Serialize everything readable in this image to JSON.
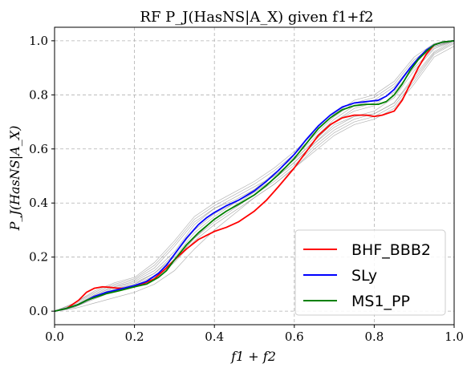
{
  "chart_data": {
    "type": "line",
    "title": "RF P_J(HasNS|A_X) given f1+f2",
    "xlabel": "f1 + f2",
    "ylabel": "P_J(HasNS|A_X)",
    "xlim": [
      0.0,
      1.0
    ],
    "ylim": [
      -0.05,
      1.05
    ],
    "xticks": [
      "0.0",
      "0.2",
      "0.4",
      "0.6",
      "0.8",
      "1.0"
    ],
    "yticks": [
      "0.0",
      "0.2",
      "0.4",
      "0.6",
      "0.8",
      "1.0"
    ],
    "grid": true,
    "legend_position": "bottom-right",
    "series": [
      {
        "name": "BHF_BBB2",
        "color": "#ff0000",
        "x": [
          0,
          0.03,
          0.06,
          0.08,
          0.1,
          0.12,
          0.14,
          0.16,
          0.18,
          0.2,
          0.22,
          0.25,
          0.28,
          0.3,
          0.33,
          0.36,
          0.38,
          0.4,
          0.43,
          0.46,
          0.5,
          0.53,
          0.56,
          0.6,
          0.63,
          0.66,
          0.69,
          0.72,
          0.75,
          0.78,
          0.8,
          0.82,
          0.85,
          0.87,
          0.89,
          0.91,
          0.93,
          0.95,
          0.97,
          1.0
        ],
        "y": [
          0,
          0.01,
          0.04,
          0.07,
          0.085,
          0.09,
          0.088,
          0.085,
          0.085,
          0.09,
          0.1,
          0.12,
          0.16,
          0.19,
          0.23,
          0.265,
          0.28,
          0.295,
          0.31,
          0.33,
          0.37,
          0.41,
          0.46,
          0.53,
          0.59,
          0.65,
          0.69,
          0.715,
          0.725,
          0.725,
          0.72,
          0.725,
          0.74,
          0.78,
          0.84,
          0.9,
          0.95,
          0.985,
          0.995,
          1.0
        ]
      },
      {
        "name": "SLy",
        "color": "#0000ff",
        "x": [
          0,
          0.03,
          0.06,
          0.08,
          0.1,
          0.13,
          0.16,
          0.2,
          0.23,
          0.26,
          0.28,
          0.3,
          0.33,
          0.36,
          0.38,
          0.4,
          0.43,
          0.46,
          0.5,
          0.53,
          0.56,
          0.6,
          0.63,
          0.66,
          0.69,
          0.72,
          0.75,
          0.78,
          0.81,
          0.83,
          0.85,
          0.87,
          0.89,
          0.91,
          0.93,
          0.95,
          0.97,
          1.0
        ],
        "y": [
          0,
          0.01,
          0.025,
          0.04,
          0.055,
          0.07,
          0.08,
          0.095,
          0.11,
          0.14,
          0.17,
          0.21,
          0.27,
          0.32,
          0.345,
          0.365,
          0.39,
          0.41,
          0.445,
          0.48,
          0.52,
          0.58,
          0.635,
          0.685,
          0.725,
          0.755,
          0.77,
          0.775,
          0.78,
          0.795,
          0.82,
          0.86,
          0.9,
          0.935,
          0.965,
          0.985,
          0.995,
          1.0
        ]
      },
      {
        "name": "MS1_PP",
        "color": "#008000",
        "x": [
          0,
          0.03,
          0.06,
          0.08,
          0.1,
          0.13,
          0.16,
          0.2,
          0.23,
          0.26,
          0.28,
          0.3,
          0.33,
          0.36,
          0.38,
          0.4,
          0.43,
          0.46,
          0.5,
          0.53,
          0.56,
          0.6,
          0.63,
          0.66,
          0.69,
          0.72,
          0.75,
          0.78,
          0.81,
          0.83,
          0.85,
          0.87,
          0.89,
          0.91,
          0.93,
          0.95,
          0.97,
          1.0
        ],
        "y": [
          0,
          0.01,
          0.025,
          0.04,
          0.05,
          0.065,
          0.075,
          0.09,
          0.1,
          0.125,
          0.15,
          0.19,
          0.245,
          0.29,
          0.315,
          0.34,
          0.37,
          0.395,
          0.43,
          0.465,
          0.505,
          0.565,
          0.62,
          0.675,
          0.715,
          0.745,
          0.76,
          0.765,
          0.765,
          0.775,
          0.8,
          0.84,
          0.89,
          0.93,
          0.96,
          0.985,
          0.995,
          1.0
        ]
      }
    ],
    "background_series": [
      {
        "x": [
          0,
          0.05,
          0.1,
          0.15,
          0.2,
          0.25,
          0.3,
          0.35,
          0.4,
          0.45,
          0.5,
          0.55,
          0.6,
          0.65,
          0.7,
          0.75,
          0.8,
          0.85,
          0.9,
          0.95,
          1.0
        ],
        "y": [
          0,
          0.02,
          0.06,
          0.09,
          0.11,
          0.15,
          0.22,
          0.32,
          0.38,
          0.42,
          0.46,
          0.5,
          0.56,
          0.63,
          0.7,
          0.74,
          0.76,
          0.82,
          0.92,
          0.98,
          1.0
        ]
      },
      {
        "x": [
          0,
          0.05,
          0.1,
          0.15,
          0.2,
          0.25,
          0.3,
          0.35,
          0.4,
          0.45,
          0.5,
          0.55,
          0.6,
          0.65,
          0.7,
          0.75,
          0.8,
          0.85,
          0.9,
          0.95,
          1.0
        ],
        "y": [
          0,
          0.03,
          0.07,
          0.1,
          0.12,
          0.17,
          0.25,
          0.34,
          0.39,
          0.43,
          0.47,
          0.52,
          0.58,
          0.65,
          0.72,
          0.77,
          0.79,
          0.84,
          0.93,
          0.985,
          1.0
        ]
      },
      {
        "x": [
          0,
          0.05,
          0.1,
          0.15,
          0.2,
          0.25,
          0.3,
          0.35,
          0.4,
          0.45,
          0.5,
          0.55,
          0.6,
          0.65,
          0.7,
          0.75,
          0.8,
          0.85,
          0.9,
          0.95,
          1.0
        ],
        "y": [
          0,
          0.015,
          0.05,
          0.08,
          0.1,
          0.13,
          0.19,
          0.27,
          0.33,
          0.38,
          0.43,
          0.48,
          0.54,
          0.61,
          0.67,
          0.71,
          0.73,
          0.77,
          0.87,
          0.96,
          1.0
        ]
      },
      {
        "x": [
          0,
          0.05,
          0.1,
          0.15,
          0.2,
          0.25,
          0.3,
          0.35,
          0.4,
          0.45,
          0.5,
          0.55,
          0.6,
          0.65,
          0.7,
          0.75,
          0.8,
          0.85,
          0.9,
          0.95,
          1.0
        ],
        "y": [
          0,
          0.02,
          0.06,
          0.09,
          0.105,
          0.14,
          0.2,
          0.29,
          0.35,
          0.4,
          0.44,
          0.49,
          0.55,
          0.62,
          0.69,
          0.72,
          0.74,
          0.79,
          0.89,
          0.97,
          1.0
        ]
      },
      {
        "x": [
          0,
          0.05,
          0.1,
          0.15,
          0.2,
          0.25,
          0.3,
          0.35,
          0.4,
          0.45,
          0.5,
          0.55,
          0.6,
          0.65,
          0.7,
          0.75,
          0.8,
          0.85,
          0.9,
          0.95,
          1.0
        ],
        "y": [
          0,
          0.025,
          0.065,
          0.095,
          0.115,
          0.16,
          0.24,
          0.33,
          0.38,
          0.41,
          0.45,
          0.51,
          0.57,
          0.64,
          0.71,
          0.76,
          0.78,
          0.83,
          0.92,
          0.98,
          1.0
        ]
      },
      {
        "x": [
          0,
          0.05,
          0.1,
          0.15,
          0.2,
          0.25,
          0.3,
          0.35,
          0.4,
          0.45,
          0.5,
          0.55,
          0.6,
          0.65,
          0.7,
          0.75,
          0.8,
          0.85,
          0.9,
          0.95,
          1.0
        ],
        "y": [
          0,
          0.01,
          0.03,
          0.05,
          0.07,
          0.1,
          0.15,
          0.23,
          0.3,
          0.36,
          0.42,
          0.47,
          0.53,
          0.59,
          0.65,
          0.69,
          0.71,
          0.75,
          0.84,
          0.94,
          0.98
        ]
      },
      {
        "x": [
          0,
          0.05,
          0.1,
          0.15,
          0.2,
          0.25,
          0.3,
          0.35,
          0.4,
          0.45,
          0.5,
          0.55,
          0.6,
          0.65,
          0.7,
          0.75,
          0.8,
          0.85,
          0.9,
          0.95,
          1.0
        ],
        "y": [
          0,
          0.015,
          0.045,
          0.075,
          0.095,
          0.12,
          0.18,
          0.26,
          0.32,
          0.37,
          0.42,
          0.47,
          0.53,
          0.6,
          0.66,
          0.7,
          0.72,
          0.76,
          0.85,
          0.95,
          0.99
        ]
      },
      {
        "x": [
          0,
          0.05,
          0.1,
          0.15,
          0.2,
          0.25,
          0.3,
          0.35,
          0.4,
          0.45,
          0.5,
          0.55,
          0.6,
          0.65,
          0.7,
          0.75,
          0.8,
          0.85,
          0.9,
          0.95,
          1.0
        ],
        "y": [
          0,
          0.02,
          0.055,
          0.085,
          0.1,
          0.14,
          0.21,
          0.3,
          0.36,
          0.4,
          0.45,
          0.5,
          0.56,
          0.63,
          0.7,
          0.75,
          0.77,
          0.81,
          0.9,
          0.975,
          1.0
        ]
      },
      {
        "x": [
          0,
          0.05,
          0.1,
          0.15,
          0.2,
          0.25,
          0.3,
          0.35,
          0.4,
          0.45,
          0.5,
          0.55,
          0.6,
          0.65,
          0.7,
          0.75,
          0.8,
          0.85,
          0.9,
          0.95,
          1.0
        ],
        "y": [
          0,
          0.03,
          0.075,
          0.105,
          0.125,
          0.18,
          0.26,
          0.35,
          0.4,
          0.44,
          0.48,
          0.53,
          0.59,
          0.66,
          0.73,
          0.78,
          0.8,
          0.85,
          0.94,
          0.99,
          1.0
        ]
      },
      {
        "x": [
          0,
          0.05,
          0.1,
          0.15,
          0.2,
          0.25,
          0.3,
          0.35,
          0.4,
          0.45,
          0.5,
          0.55,
          0.6,
          0.65,
          0.7,
          0.75,
          0.8,
          0.85,
          0.9,
          0.95,
          1.0
        ],
        "y": [
          0,
          0.015,
          0.05,
          0.08,
          0.095,
          0.125,
          0.185,
          0.27,
          0.34,
          0.39,
          0.44,
          0.49,
          0.55,
          0.62,
          0.68,
          0.72,
          0.73,
          0.77,
          0.86,
          0.955,
          0.995
        ]
      }
    ]
  }
}
